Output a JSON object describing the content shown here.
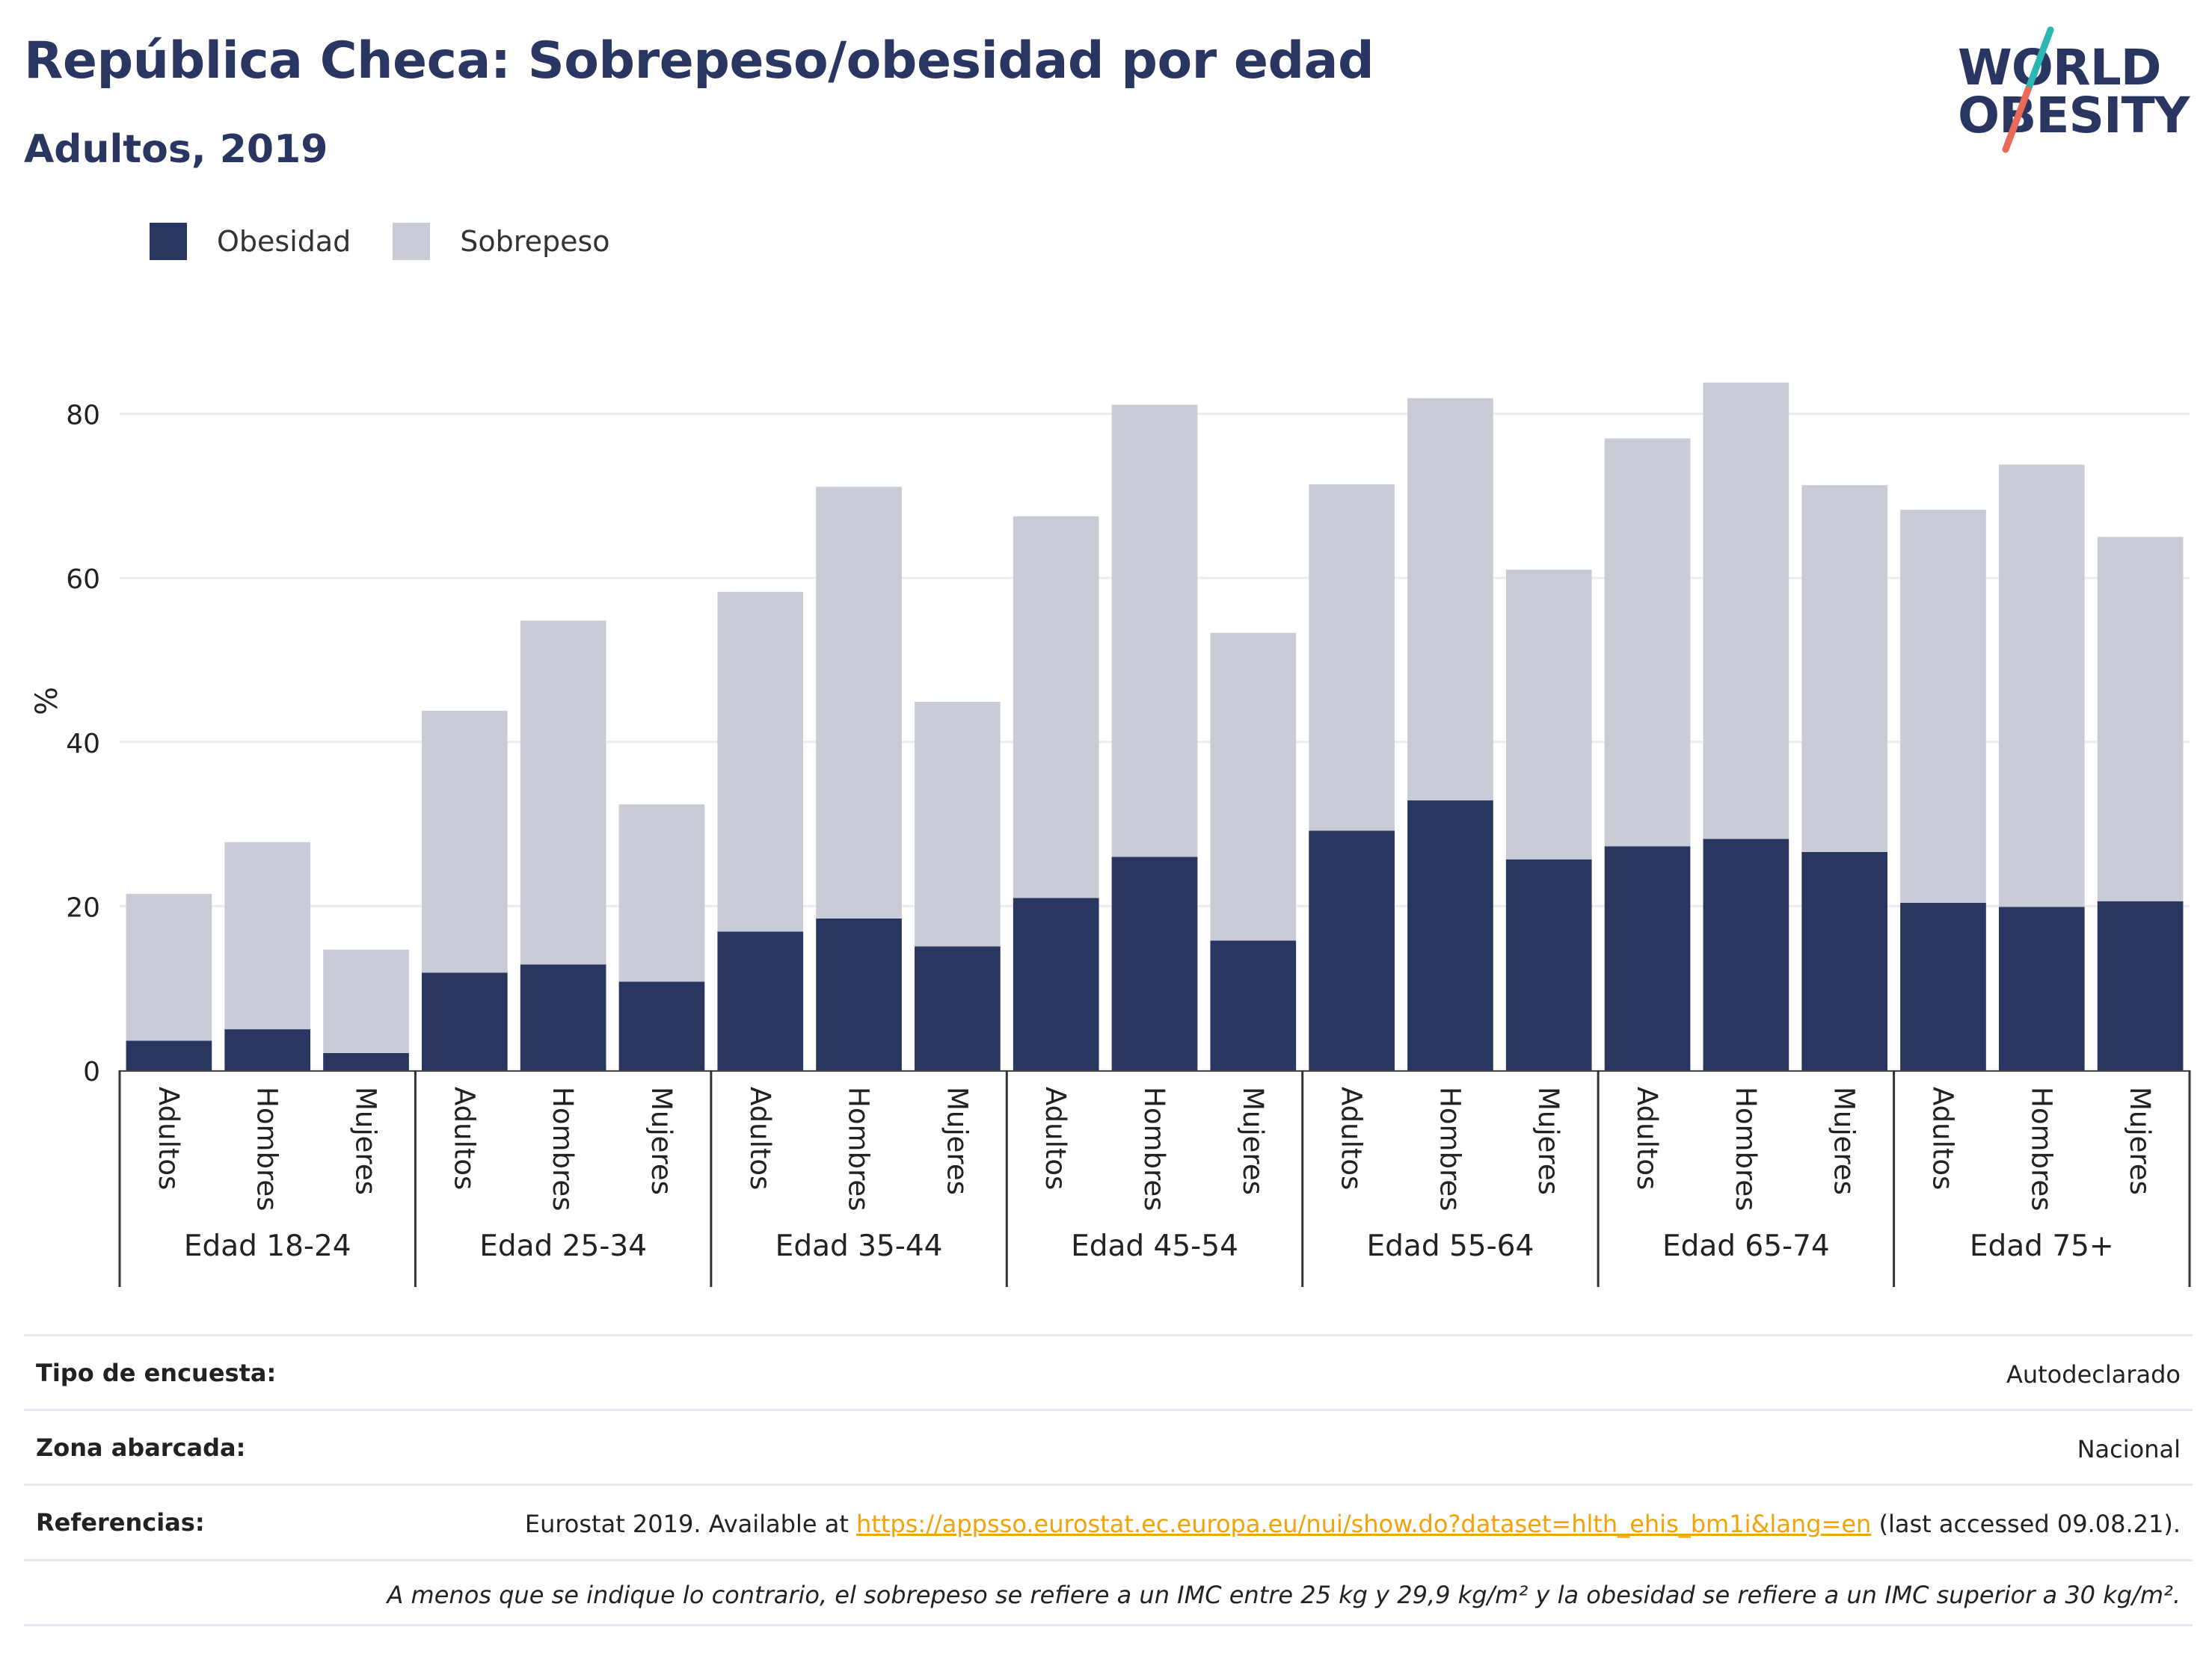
{
  "header": {
    "title": "República Checa: Sobrepeso/obesidad por edad",
    "subtitle": "Adultos, 2019"
  },
  "logo": {
    "line1": "WORLD",
    "line2": "OBESITY",
    "accent_teal": "#2bb7b3",
    "accent_coral": "#ea6a5a"
  },
  "legend": [
    {
      "label": "Obesidad",
      "color": "#29365f"
    },
    {
      "label": "Sobrepeso",
      "color": "#c9cbd6"
    }
  ],
  "chart_data": {
    "type": "bar",
    "stacked": true,
    "ylabel": "%",
    "ylim": [
      0,
      90
    ],
    "yticks": [
      0,
      20,
      40,
      60,
      80
    ],
    "grid": true,
    "legend_position": "top-left",
    "groups": [
      "Edad 18-24",
      "Edad 25-34",
      "Edad 35-44",
      "Edad 45-54",
      "Edad 55-64",
      "Edad 65-74",
      "Edad 75+"
    ],
    "subcategories": [
      "Adultos",
      "Hombres",
      "Mujeres"
    ],
    "series": [
      {
        "name": "Obesidad",
        "color": "#29365f",
        "values": [
          3.6,
          5.0,
          2.1,
          11.9,
          12.9,
          10.8,
          16.9,
          18.5,
          15.1,
          21.0,
          26.0,
          15.8,
          29.2,
          32.9,
          25.7,
          27.3,
          28.2,
          26.6,
          20.4,
          19.9,
          20.6
        ]
      },
      {
        "name": "Sobrepeso",
        "color": "#c9cbd6",
        "values": [
          17.9,
          22.8,
          12.6,
          31.9,
          41.9,
          21.6,
          41.4,
          52.6,
          29.8,
          46.5,
          55.1,
          37.5,
          42.2,
          49.0,
          35.3,
          49.7,
          55.6,
          44.7,
          47.9,
          53.9,
          44.4
        ]
      }
    ]
  },
  "info": {
    "survey_type_label": "Tipo de encuesta:",
    "survey_type_value": "Autodeclarado",
    "area_label": "Zona abarcada:",
    "area_value": "Nacional",
    "refs_label": "Referencias:",
    "refs_prefix": "Eurostat 2019. Available at",
    "refs_link": "https://appsso.eurostat.ec.europa.eu/nui/show.do?dataset=hlth_ehis_bm1i&lang=en",
    "refs_suffix": "(last accessed 09.08.21).",
    "note": "A menos que se indique lo contrario, el sobrepeso se refiere a un IMC entre 25 kg y 29,9 kg/m² y la obesidad se refiere a un IMC superior a 30 kg/m²."
  }
}
